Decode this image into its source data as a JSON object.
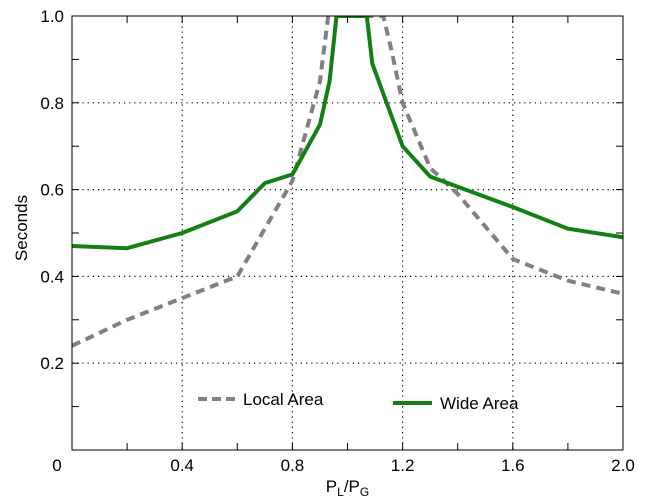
{
  "chart_data": {
    "type": "line",
    "xlabel": {
      "main": "P",
      "sub1": "L",
      "sep": "/P",
      "sub2": "G"
    },
    "ylabel": "Seconds",
    "xlim": [
      0,
      2.0
    ],
    "ylim": [
      0,
      1.0
    ],
    "grid": true,
    "grid_style": "dotted",
    "x_ticks": [
      0.4,
      0.8,
      1.2,
      1.6,
      2.0
    ],
    "x_tick_labels": [
      "0.4",
      "0.8",
      "1.2",
      "1.6",
      "2.0"
    ],
    "y_ticks": [
      0.2,
      0.4,
      0.6,
      0.8,
      1.0
    ],
    "y_tick_labels": [
      "0.2",
      "0.4",
      "0.6",
      "0.8",
      "1.0"
    ],
    "origin_label": "0",
    "legend_placement": "bottom-center",
    "series": [
      {
        "name": "Local Area",
        "color": "#808080",
        "style": "dashed",
        "x": [
          0.0,
          0.2,
          0.4,
          0.6,
          0.8,
          0.9,
          0.93,
          1.13,
          1.16,
          1.2,
          1.3,
          1.4,
          1.6,
          1.8,
          2.0
        ],
        "y": [
          0.24,
          0.3,
          0.35,
          0.4,
          0.62,
          0.85,
          1.0,
          1.0,
          0.92,
          0.8,
          0.65,
          0.59,
          0.44,
          0.39,
          0.36
        ]
      },
      {
        "name": "Wide Area",
        "color": "#128012",
        "style": "solid",
        "x": [
          0.0,
          0.2,
          0.4,
          0.6,
          0.7,
          0.8,
          0.9,
          0.935,
          0.96,
          1.07,
          1.09,
          1.2,
          1.3,
          1.6,
          1.8,
          2.0
        ],
        "y": [
          0.47,
          0.465,
          0.5,
          0.55,
          0.615,
          0.635,
          0.75,
          0.85,
          1.0,
          1.0,
          0.89,
          0.7,
          0.63,
          0.56,
          0.51,
          0.49
        ]
      }
    ]
  }
}
